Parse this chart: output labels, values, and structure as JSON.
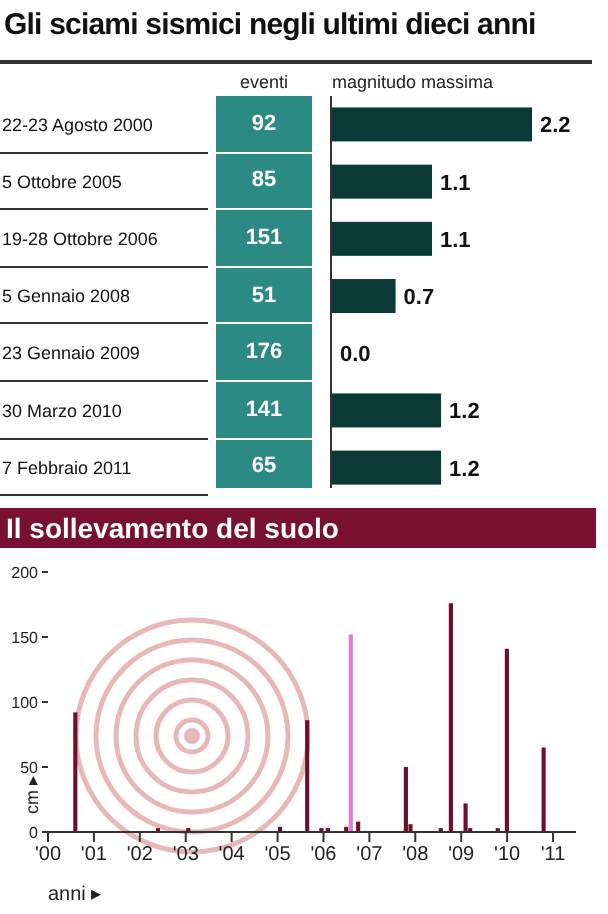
{
  "chart_data": [
    {
      "type": "bar",
      "orientation": "horizontal",
      "title": "Gli sciami sismici negli ultimi dieci anni",
      "categories": [
        "22-23 Agosto 2000",
        "5 Ottobre 2005",
        "19-28 Ottobre 2006",
        "5 Gennaio 2008",
        "23 Gennaio 2009",
        "30 Marzo 2010",
        "7 Febbraio 2011"
      ],
      "series": [
        {
          "name": "magnitudo massima",
          "color": "#0b3a36",
          "values": [
            2.2,
            1.1,
            1.1,
            0.7,
            0.0,
            1.2,
            1.2
          ],
          "value_labels": [
            "2.2",
            "1.1",
            "1.1",
            "0.7",
            "0.0",
            "1.2",
            "1.2"
          ]
        }
      ],
      "tick_labels": "y"
    },
    {
      "type": "other",
      "title": "eventi",
      "values": [
        92,
        85,
        151,
        51,
        176,
        141,
        65
      ],
      "color": "#2b8a84",
      "data_labels": true
    },
    {
      "type": "bar",
      "title": "Il sollevamento del suolo",
      "xlabel": "anni ▸",
      "ylabel": "cm ▸",
      "x": [
        2000.6,
        2002.4,
        2003.06,
        2005.06,
        2005.65,
        2005.96,
        2006.1,
        2006.5,
        2006.6,
        2006.76,
        2007.8,
        2007.9,
        2008.56,
        2008.78,
        2009.1,
        2009.2,
        2009.8,
        2010.0,
        2010.8
      ],
      "values": [
        92,
        3,
        3,
        4,
        86,
        3,
        3,
        4,
        152,
        8,
        50,
        6,
        3,
        176,
        22,
        3,
        3,
        141,
        65
      ],
      "colors": [
        "#6b0f2a",
        "#6b0f2a",
        "#6b0f2a",
        "#6b0f2a",
        "#6b0f2a",
        "#6b0f2a",
        "#6b0f2a",
        "#6b0f2a",
        "#e27ad6",
        "#6b0f2a",
        "#6b0f2a",
        "#6b0f2a",
        "#6b0f2a",
        "#6b0f2a",
        "#6b0f2a",
        "#6b0f2a",
        "#6b0f2a",
        "#6b0f2a",
        "#6b0f2a"
      ],
      "xlim": [
        2000,
        2011.5
      ],
      "xticks": [
        {
          "value": 2000,
          "label": "'00"
        },
        {
          "value": 2001,
          "label": "'01"
        },
        {
          "value": 2002,
          "label": "'02"
        },
        {
          "value": 2003,
          "label": "'03"
        },
        {
          "value": 2004,
          "label": "'04"
        },
        {
          "value": 2005,
          "label": "'05"
        },
        {
          "value": 2006,
          "label": "'06"
        },
        {
          "value": 2007,
          "label": "'07"
        },
        {
          "value": 2008,
          "label": "'08"
        },
        {
          "value": 2009,
          "label": "'09"
        },
        {
          "value": 2010,
          "label": "'10"
        },
        {
          "value": 2011,
          "label": "'11"
        }
      ],
      "ylim": [
        0,
        200
      ],
      "yticks": [
        0,
        50,
        100,
        150,
        200
      ]
    }
  ]
}
